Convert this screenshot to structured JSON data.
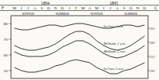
{
  "chart_data": {
    "type": "line",
    "ylabel": "F",
    "y2label": "C",
    "year_labels": [
      "1894",
      "1895"
    ],
    "season_labels": [
      "WINTER",
      "SUMMER",
      "WINTER",
      "SUMMER"
    ],
    "categories": [
      "M",
      "J",
      "J",
      "A",
      "S",
      "O",
      "N",
      "D",
      "J",
      "F",
      "M",
      "A",
      "M",
      "J",
      "J",
      "A",
      "S",
      "O",
      "N",
      "D"
    ],
    "ylim": [
      45,
      85
    ],
    "yticks": [
      {
        "value": 50,
        "label": "50°"
      },
      {
        "value": 60,
        "label": "60°"
      },
      {
        "value": 70,
        "label": "70°"
      },
      {
        "value": 80,
        "label": "80°"
      }
    ],
    "y2lim": [
      7.22,
      29.44
    ],
    "y2ticks": [
      {
        "value": 10,
        "label": "10°"
      },
      {
        "value": 15,
        "label": "15°"
      },
      {
        "value": 20,
        "label": "20°"
      },
      {
        "value": 25,
        "label": "25°"
      }
    ],
    "grid": false,
    "series": [
      {
        "name": "La Joya, 1 p.m.",
        "color": "#222222",
        "values": [
          77,
          76,
          76,
          77,
          78,
          79,
          79,
          78,
          79,
          80,
          80,
          79,
          78,
          77,
          77,
          78,
          79,
          79,
          78,
          79
        ]
      },
      {
        "name": "Mollendo, 1 p.m.",
        "color": "#222222",
        "values": [
          66,
          64,
          63,
          63,
          64,
          65,
          67,
          70,
          73,
          75,
          75,
          73,
          69,
          66,
          64,
          63,
          64,
          66,
          69,
          72
        ]
      },
      {
        "name": "Mollendo, 5 a.m.",
        "color": "#222222",
        "values": [
          62,
          60,
          59,
          59,
          59,
          60,
          62,
          65,
          67,
          69,
          69,
          67,
          64,
          61,
          59,
          58,
          59,
          61,
          63,
          66
        ]
      },
      {
        "name": "La Joya, 5 a.m.",
        "color": "#222222",
        "values": [
          52,
          50,
          49,
          49,
          50,
          51,
          53,
          54,
          56,
          57,
          56,
          55,
          52,
          50,
          48,
          48,
          50,
          51,
          53,
          55
        ]
      }
    ]
  }
}
